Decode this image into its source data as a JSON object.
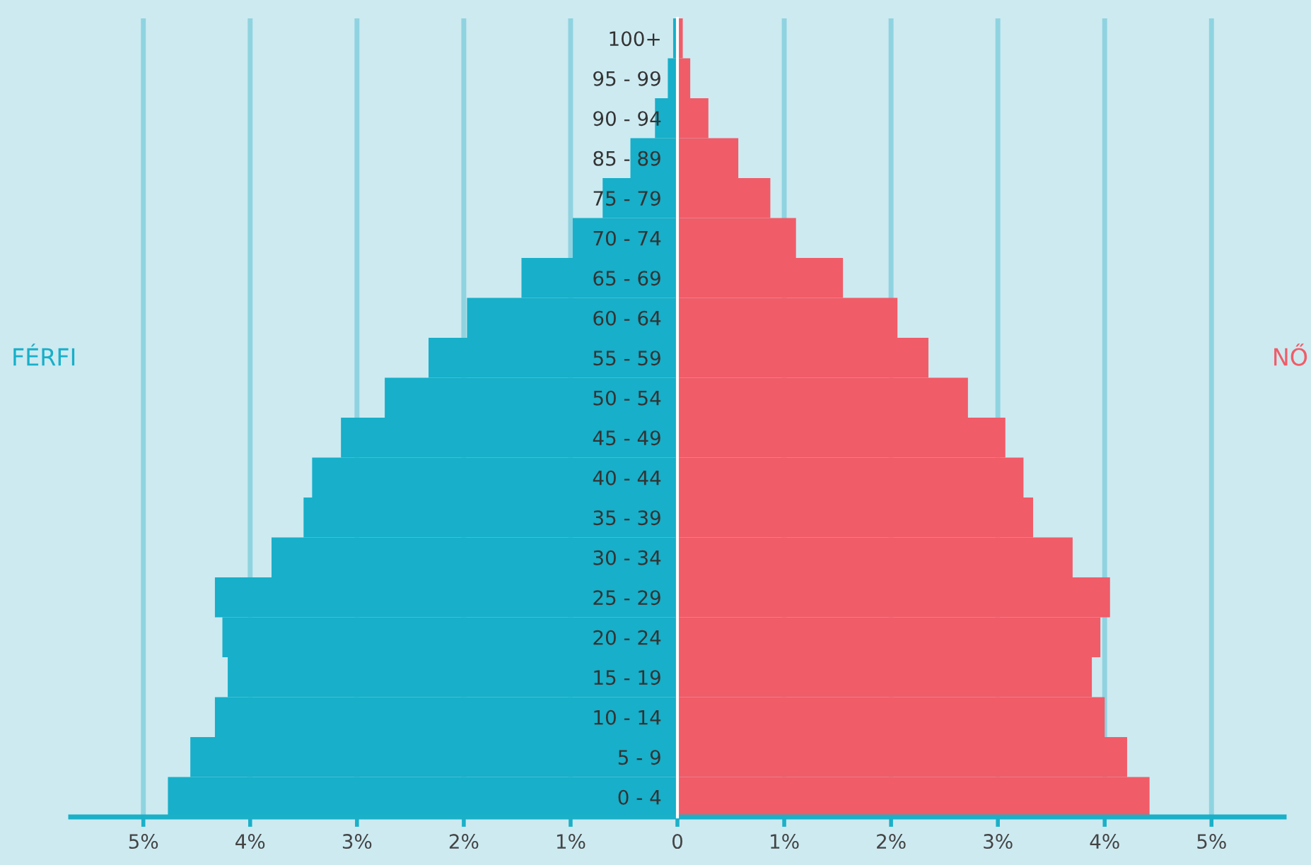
{
  "chart_data": {
    "type": "bar",
    "orientation": "horizontal",
    "categories": [
      "100+",
      "95 - 99",
      "90 - 94",
      "85 - 89",
      "75 - 79",
      "70 - 74",
      "65 - 69",
      "60 - 64",
      "55 - 59",
      "50 - 54",
      "45 - 49",
      "40 - 44",
      "35 - 39",
      "30 - 34",
      "25 - 29",
      "20 - 24",
      "15 - 19",
      "10 - 14",
      "5 - 9",
      "0 - 4"
    ],
    "series": [
      {
        "name": "FÉRFI",
        "color": "#17afc9",
        "values": [
          -0.04,
          -0.09,
          -0.21,
          -0.44,
          -0.7,
          -0.98,
          -1.46,
          -1.97,
          -2.33,
          -2.74,
          -3.15,
          -3.42,
          -3.5,
          -3.8,
          -4.33,
          -4.26,
          -4.21,
          -4.33,
          -4.56,
          -4.77
        ]
      },
      {
        "name": "NŐ",
        "color": "#f05c68",
        "values": [
          0.05,
          0.12,
          0.29,
          0.57,
          0.87,
          1.11,
          1.55,
          2.06,
          2.35,
          2.72,
          3.07,
          3.24,
          3.33,
          3.7,
          4.05,
          3.96,
          3.88,
          4.0,
          4.21,
          4.42
        ]
      }
    ],
    "xlim": [
      -5.68,
      5.68
    ],
    "xticks": [
      {
        "value": -5,
        "label": "5%"
      },
      {
        "value": -4,
        "label": "4%"
      },
      {
        "value": -3,
        "label": "3%"
      },
      {
        "value": -2,
        "label": "2%"
      },
      {
        "value": -1,
        "label": "1%"
      },
      0,
      {
        "value": 1,
        "label": "1%"
      },
      {
        "value": 2,
        "label": "2%"
      },
      {
        "value": 3,
        "label": "3%"
      },
      {
        "value": 4,
        "label": "4%"
      },
      {
        "value": 5,
        "label": "5%"
      }
    ],
    "grid": "x",
    "legend": false,
    "stacked": true
  }
}
